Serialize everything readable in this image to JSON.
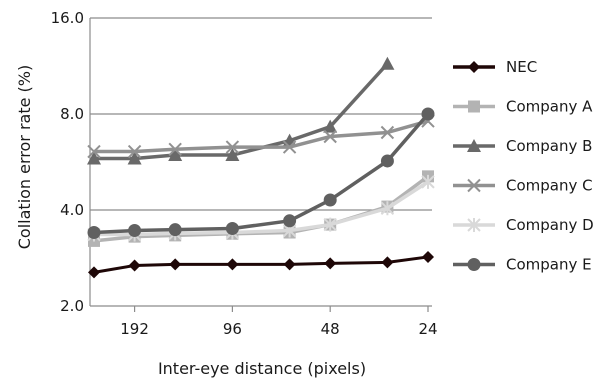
{
  "chart_data": {
    "type": "line",
    "xlabel": "Inter-eye distance (pixels)",
    "ylabel": "Collation error rate (%)",
    "x": [
      256,
      192,
      144,
      96,
      64,
      48,
      32,
      24
    ],
    "x_ticks": [
      192,
      96,
      48,
      24
    ],
    "x_tick_labels": [
      "192",
      "96",
      "48",
      "24"
    ],
    "x_scale": "log-reversed",
    "y_scale": "log2",
    "ylim": [
      2.0,
      16.0
    ],
    "y_ticks": [
      2.0,
      4.0,
      8.0,
      16.0
    ],
    "y_tick_labels": [
      "2.0",
      "4.0",
      "8.0",
      "16.0"
    ],
    "grid": "horizontal",
    "legend_position": "right",
    "series": [
      {
        "name": "NEC",
        "color": "#1e0707",
        "marker": "diamond",
        "values": [
          2.55,
          2.68,
          2.7,
          2.7,
          2.7,
          2.72,
          2.74,
          2.85
        ]
      },
      {
        "name": "Company A",
        "color": "#b3b3b3",
        "marker": "square",
        "values": [
          3.2,
          3.3,
          3.33,
          3.37,
          3.4,
          3.6,
          4.1,
          5.1
        ]
      },
      {
        "name": "Company B",
        "color": "#696969",
        "marker": "triangle",
        "values": [
          5.8,
          5.8,
          5.95,
          5.95,
          6.6,
          7.3,
          11.5,
          null
        ]
      },
      {
        "name": "Company C",
        "color": "#919191",
        "marker": "x",
        "values": [
          6.1,
          6.1,
          6.2,
          6.3,
          6.3,
          6.8,
          7.0,
          7.6
        ]
      },
      {
        "name": "Company D",
        "color": "#d9d9d9",
        "marker": "asterisk",
        "values": [
          3.35,
          3.35,
          3.38,
          3.4,
          3.45,
          3.6,
          4.05,
          4.9
        ]
      },
      {
        "name": "Company E",
        "color": "#606060",
        "marker": "circle",
        "values": [
          3.4,
          3.45,
          3.47,
          3.5,
          3.7,
          4.3,
          5.7,
          8.0
        ]
      }
    ]
  }
}
